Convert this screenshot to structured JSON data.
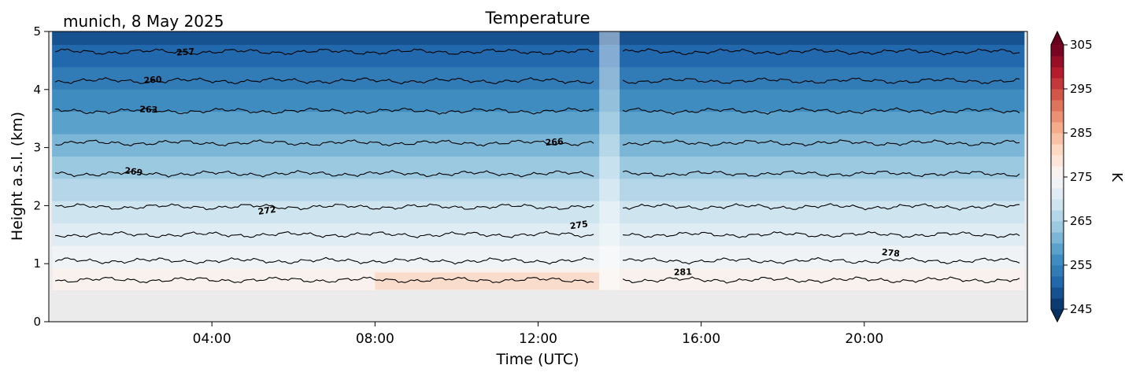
{
  "chart_data": {
    "type": "heatmap",
    "title": "Temperature",
    "subtitle": "munich, 8 May 2025",
    "xlabel": "Time (UTC)",
    "ylabel": "Height a.s.l. (km)",
    "xlim": [
      0,
      24
    ],
    "ylim": [
      0,
      5
    ],
    "x_ticks": [
      "04:00",
      "08:00",
      "12:00",
      "16:00",
      "20:00"
    ],
    "x_tick_hours": [
      4,
      8,
      12,
      16,
      20
    ],
    "y_ticks": [
      "0",
      "1",
      "2",
      "3",
      "4",
      "5"
    ],
    "y_tick_values": [
      0,
      1,
      2,
      3,
      4,
      5
    ],
    "colorbar": {
      "label": "K",
      "range": [
        245,
        305
      ],
      "ticks": [
        "305",
        "295",
        "285",
        "275",
        "265",
        "255",
        "245"
      ],
      "tick_values": [
        305,
        295,
        285,
        275,
        265,
        255,
        245
      ],
      "step": 2.5,
      "extend": "both",
      "colormap": "RdBu_r"
    },
    "data_start_hour": 0.08,
    "data_end_hour": 23.93,
    "data_bottom_km": 0.55,
    "missing_data_gap_hours": [
      13.5,
      14.0
    ],
    "surface_temperature_K": 281,
    "lapse_rate_K_per_km": 6.5,
    "contour_levels": [
      {
        "level": 257,
        "height_km": 4.65
      },
      {
        "level": 260,
        "height_km": 4.15
      },
      {
        "level": 263,
        "height_km": 3.63
      },
      {
        "level": 266,
        "height_km": 3.08
      },
      {
        "level": 269,
        "height_km": 2.55
      },
      {
        "level": 272,
        "height_km": 1.98
      },
      {
        "level": 275,
        "height_km": 1.5
      },
      {
        "level": 278,
        "height_km": 1.05
      },
      {
        "level": 281,
        "height_km": 0.72
      }
    ],
    "contour_labels": [
      {
        "text": "257",
        "x_hour": 3.35,
        "y_km": 4.65,
        "angle": -4
      },
      {
        "text": "260",
        "x_hour": 2.55,
        "y_km": 4.17,
        "angle": -4
      },
      {
        "text": "263",
        "x_hour": 2.45,
        "y_km": 3.66,
        "angle": 2
      },
      {
        "text": "266",
        "x_hour": 12.4,
        "y_km": 3.1,
        "angle": -4
      },
      {
        "text": "269",
        "x_hour": 2.08,
        "y_km": 2.59,
        "angle": 8
      },
      {
        "text": "272",
        "x_hour": 5.35,
        "y_km": 1.92,
        "angle": -8
      },
      {
        "text": "275",
        "x_hour": 13.0,
        "y_km": 1.67,
        "angle": -8
      },
      {
        "text": "278",
        "x_hour": 20.65,
        "y_km": 1.19,
        "angle": 6
      },
      {
        "text": "281",
        "x_hour": 15.55,
        "y_km": 0.86,
        "angle": -2
      }
    ]
  }
}
